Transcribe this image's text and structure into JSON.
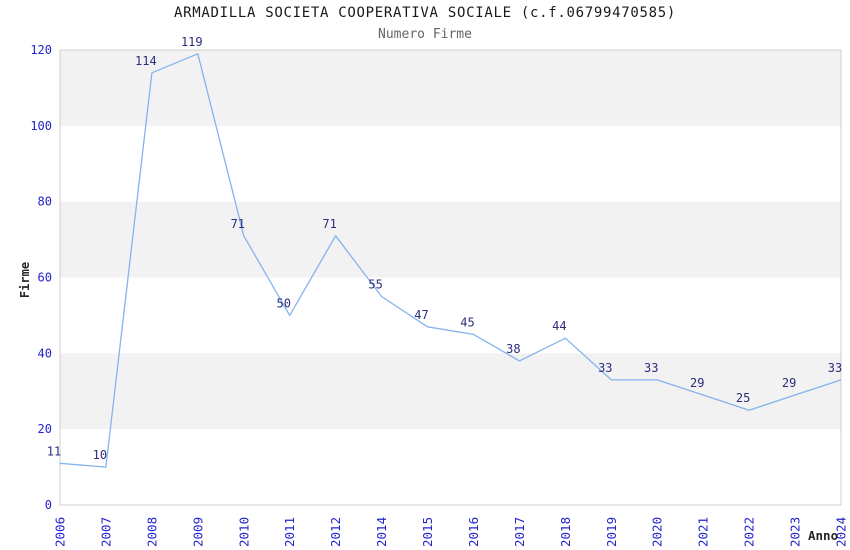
{
  "colors": {
    "line": "#85B3EE",
    "tick_label": "#2424CC",
    "point_label": "#2D2D7D",
    "band_gray": "#F2F2F2",
    "plot_background": "#FFFFFF",
    "plot_border": "#CFCFCF",
    "title": "#1A1A1A",
    "subtitle": "#666666",
    "axis_title": "#262626"
  },
  "chart_data": {
    "type": "line",
    "title": "ARMADILLA SOCIETA COOPERATIVA SOCIALE (c.f.06799470585)",
    "subtitle": "Numero Firme",
    "xlabel": "Anno",
    "ylabel": "Firme",
    "categories": [
      "2006",
      "2007",
      "2008",
      "2009",
      "2010",
      "2011",
      "2012",
      "2014",
      "2015",
      "2016",
      "2017",
      "2018",
      "2019",
      "2020",
      "2021",
      "2022",
      "2023",
      "2024"
    ],
    "values": [
      11,
      10,
      114,
      119,
      71,
      50,
      71,
      55,
      47,
      45,
      38,
      44,
      33,
      33,
      29,
      25,
      29,
      33
    ],
    "ylim": [
      0,
      120
    ],
    "yticks": [
      0,
      20,
      40,
      60,
      80,
      100,
      120
    ],
    "grid": "horizontal-alternating-bands",
    "gray_bands": [
      [
        20,
        40
      ],
      [
        60,
        80
      ],
      [
        100,
        120
      ]
    ],
    "point_labels_shown": true,
    "legend_position": "none"
  }
}
